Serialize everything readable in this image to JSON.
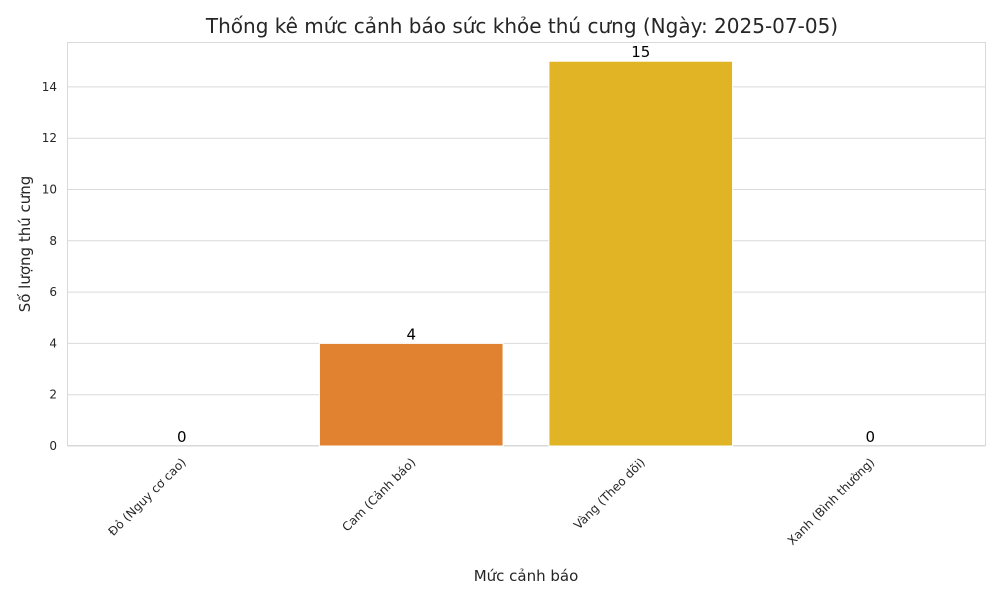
{
  "chart_data": {
    "type": "bar",
    "title": "Thống kê mức cảnh báo sức khỏe thú cưng (Ngày: 2025-07-05)",
    "xlabel": "Mức cảnh báo",
    "ylabel": "Số lượng thú cưng",
    "categories": [
      "Đỏ (Nguy cơ cao)",
      "Cam (Cảnh báo)",
      "Vàng (Theo dõi)",
      "Xanh (Bình thường)"
    ],
    "values": [
      0,
      4,
      15,
      0
    ],
    "colors": [
      "#d9342b",
      "#e0822f",
      "#e0b425",
      "#3a9b3a"
    ],
    "ylim": [
      0,
      15.75
    ],
    "yticks": [
      0,
      2,
      4,
      6,
      8,
      10,
      12,
      14
    ],
    "grid": true,
    "legend": "none"
  }
}
